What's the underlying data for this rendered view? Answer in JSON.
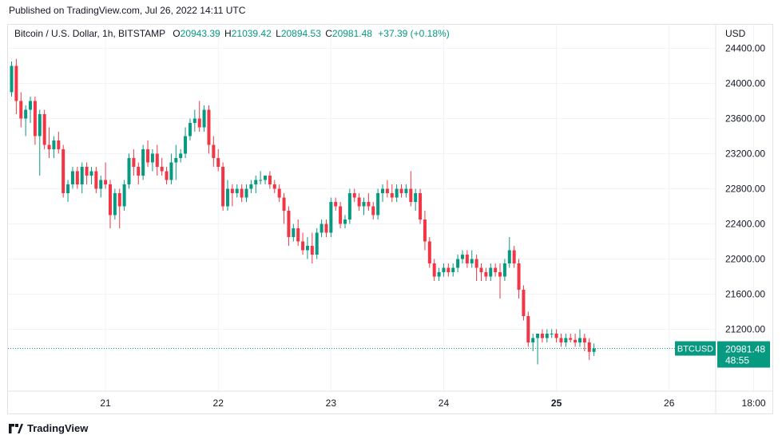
{
  "header": {
    "published": "Published on TradingView.com, Jul 26, 2022 14:11 UTC"
  },
  "legend": {
    "symbol": "Bitcoin / U.S. Dollar, 1h, BITSTAMP",
    "o_label": "O",
    "o_value": "20943.39",
    "h_label": "H",
    "h_value": "21039.42",
    "l_label": "L",
    "l_value": "20894.53",
    "c_label": "C",
    "c_value": "20981.48",
    "change": "+37.39 (+0.18%)"
  },
  "price_axis": {
    "currency": "USD"
  },
  "last_price": {
    "ticker": "BTCUSD",
    "value": "20981.48",
    "countdown": "48:55"
  },
  "footer": {
    "brand": "TradingView"
  },
  "colors": {
    "up": "#089981",
    "down": "#f23645",
    "grid": "#f0f3fa",
    "axis_text": "#131722"
  },
  "chart_data": {
    "type": "candlestick",
    "interval": "1h",
    "ylim": [
      20700,
      24500
    ],
    "y_ticks": [
      21200,
      21600,
      22000,
      22400,
      22800,
      23200,
      23600,
      24000,
      24400
    ],
    "y_tick_labels": [
      "21200.00",
      "21600.00",
      "22000.00",
      "22400.00",
      "22800.00",
      "23200.00",
      "23600.00",
      "24000.00",
      "24400.00"
    ],
    "x_ticks": [
      {
        "label": "21",
        "hour": 20,
        "bold": false
      },
      {
        "label": "22",
        "hour": 44,
        "bold": false
      },
      {
        "label": "23",
        "hour": 68,
        "bold": false
      },
      {
        "label": "24",
        "hour": 92,
        "bold": false
      },
      {
        "label": "25",
        "hour": 116,
        "bold": true
      },
      {
        "label": "26",
        "hour": 140,
        "bold": false
      },
      {
        "label": "18:00",
        "hour": 158,
        "bold": false
      }
    ],
    "last_close": 20981.48,
    "candles": [
      [
        23900,
        24250,
        23850,
        24200
      ],
      [
        24200,
        24280,
        23650,
        23800
      ],
      [
        23800,
        23900,
        23500,
        23600
      ],
      [
        23600,
        23750,
        23400,
        23700
      ],
      [
        23700,
        23850,
        23550,
        23800
      ],
      [
        23800,
        23850,
        23300,
        23400
      ],
      [
        23400,
        23700,
        22950,
        23650
      ],
      [
        23650,
        23700,
        23250,
        23300
      ],
      [
        23300,
        23500,
        23150,
        23250
      ],
      [
        23250,
        23400,
        23150,
        23350
      ],
      [
        23350,
        23450,
        23200,
        23250
      ],
      [
        23250,
        23300,
        22700,
        22750
      ],
      [
        22750,
        22900,
        22650,
        22850
      ],
      [
        22850,
        23050,
        22800,
        23000
      ],
      [
        23000,
        23050,
        22800,
        22850
      ],
      [
        22850,
        23100,
        22750,
        23050
      ],
      [
        23050,
        23100,
        22850,
        22950
      ],
      [
        22950,
        23050,
        22850,
        23000
      ],
      [
        23000,
        23050,
        22750,
        22800
      ],
      [
        22800,
        22950,
        22700,
        22900
      ],
      [
        22900,
        23100,
        22800,
        22850
      ],
      [
        22850,
        22900,
        22350,
        22500
      ],
      [
        22500,
        22800,
        22450,
        22750
      ],
      [
        22750,
        22800,
        22350,
        22600
      ],
      [
        22600,
        22900,
        22550,
        22850
      ],
      [
        22850,
        23200,
        22800,
        23150
      ],
      [
        23150,
        23250,
        22950,
        23050
      ],
      [
        23050,
        23100,
        22850,
        22950
      ],
      [
        22950,
        23300,
        22900,
        23250
      ],
      [
        23250,
        23350,
        23050,
        23100
      ],
      [
        23100,
        23250,
        23000,
        23200
      ],
      [
        23200,
        23300,
        22950,
        23050
      ],
      [
        23050,
        23150,
        22950,
        23000
      ],
      [
        23000,
        23050,
        22850,
        22900
      ],
      [
        22900,
        23200,
        22850,
        23100
      ],
      [
        23100,
        23300,
        22900,
        23150
      ],
      [
        23150,
        23250,
        23100,
        23200
      ],
      [
        23200,
        23500,
        23150,
        23400
      ],
      [
        23400,
        23600,
        23350,
        23550
      ],
      [
        23550,
        23700,
        23450,
        23600
      ],
      [
        23600,
        23800,
        23450,
        23500
      ],
      [
        23500,
        23750,
        23450,
        23700
      ],
      [
        23700,
        23750,
        23200,
        23300
      ],
      [
        23300,
        23400,
        23050,
        23150
      ],
      [
        23150,
        23250,
        23000,
        23050
      ],
      [
        23050,
        23100,
        22550,
        22600
      ],
      [
        22600,
        22900,
        22550,
        22800
      ],
      [
        22800,
        22850,
        22600,
        22750
      ],
      [
        22750,
        22850,
        22700,
        22800
      ],
      [
        22800,
        22850,
        22650,
        22700
      ],
      [
        22700,
        22850,
        22650,
        22800
      ],
      [
        22800,
        22900,
        22750,
        22850
      ],
      [
        22850,
        22950,
        22750,
        22900
      ],
      [
        22900,
        23000,
        22850,
        22900
      ],
      [
        22900,
        22950,
        22850,
        22950
      ],
      [
        22950,
        23000,
        22800,
        22850
      ],
      [
        22850,
        22900,
        22750,
        22800
      ],
      [
        22800,
        22850,
        22650,
        22700
      ],
      [
        22700,
        22750,
        22400,
        22550
      ],
      [
        22550,
        22600,
        22150,
        22250
      ],
      [
        22250,
        22400,
        22200,
        22350
      ],
      [
        22350,
        22450,
        22150,
        22200
      ],
      [
        22200,
        22300,
        22050,
        22100
      ],
      [
        22100,
        22250,
        22000,
        22150
      ],
      [
        22150,
        22300,
        21950,
        22050
      ],
      [
        22050,
        22350,
        22000,
        22300
      ],
      [
        22300,
        22450,
        22250,
        22400
      ],
      [
        22400,
        22450,
        22250,
        22300
      ],
      [
        22300,
        22700,
        22250,
        22650
      ],
      [
        22650,
        22700,
        22550,
        22600
      ],
      [
        22600,
        22650,
        22350,
        22400
      ],
      [
        22400,
        22500,
        22350,
        22450
      ],
      [
        22450,
        22800,
        22400,
        22750
      ],
      [
        22750,
        22800,
        22650,
        22700
      ],
      [
        22700,
        22750,
        22550,
        22600
      ],
      [
        22600,
        22700,
        22500,
        22650
      ],
      [
        22650,
        22750,
        22550,
        22600
      ],
      [
        22600,
        22650,
        22450,
        22500
      ],
      [
        22500,
        22800,
        22450,
        22750
      ],
      [
        22750,
        22850,
        22650,
        22800
      ],
      [
        22800,
        22900,
        22700,
        22750
      ],
      [
        22750,
        22850,
        22650,
        22700
      ],
      [
        22700,
        22850,
        22650,
        22800
      ],
      [
        22800,
        22850,
        22700,
        22750
      ],
      [
        22750,
        22850,
        22700,
        22800
      ],
      [
        22800,
        23000,
        22600,
        22650
      ],
      [
        22650,
        22800,
        22550,
        22750
      ],
      [
        22750,
        22800,
        22400,
        22450
      ],
      [
        22450,
        22550,
        22100,
        22200
      ],
      [
        22200,
        22250,
        21900,
        21950
      ],
      [
        21950,
        22000,
        21750,
        21800
      ],
      [
        21800,
        21900,
        21750,
        21850
      ],
      [
        21850,
        21950,
        21800,
        21900
      ],
      [
        21900,
        21950,
        21800,
        21850
      ],
      [
        21850,
        21950,
        21800,
        21900
      ],
      [
        21900,
        22050,
        21850,
        22000
      ],
      [
        22000,
        22100,
        21950,
        22050
      ],
      [
        22050,
        22100,
        21900,
        21950
      ],
      [
        21950,
        22100,
        21900,
        22000
      ],
      [
        22000,
        22050,
        21750,
        21900
      ],
      [
        21900,
        21950,
        21750,
        21850
      ],
      [
        21850,
        21900,
        21750,
        21800
      ],
      [
        21800,
        21950,
        21750,
        21900
      ],
      [
        21900,
        21950,
        21800,
        21850
      ],
      [
        21850,
        21950,
        21550,
        21800
      ],
      [
        21800,
        22000,
        21750,
        21950
      ],
      [
        21950,
        22250,
        21900,
        22100
      ],
      [
        22100,
        22150,
        21900,
        21950
      ],
      [
        21950,
        22000,
        21550,
        21650
      ],
      [
        21650,
        21700,
        21300,
        21350
      ],
      [
        21350,
        21400,
        21000,
        21050
      ],
      [
        21050,
        21150,
        20950,
        21100
      ],
      [
        21100,
        21150,
        20800,
        21150
      ],
      [
        21150,
        21200,
        21050,
        21100
      ],
      [
        21100,
        21200,
        21050,
        21150
      ],
      [
        21150,
        21200,
        21100,
        21150
      ],
      [
        21150,
        21200,
        21050,
        21100
      ],
      [
        21100,
        21150,
        21000,
        21050
      ],
      [
        21050,
        21150,
        21000,
        21100
      ],
      [
        21100,
        21150,
        21050,
        21080
      ],
      [
        21080,
        21150,
        21000,
        21050
      ],
      [
        21050,
        21200,
        21000,
        21100
      ],
      [
        21100,
        21150,
        20950,
        21050
      ],
      [
        21050,
        21100,
        20850,
        20943
      ],
      [
        20943,
        21039,
        20895,
        20981
      ]
    ]
  }
}
